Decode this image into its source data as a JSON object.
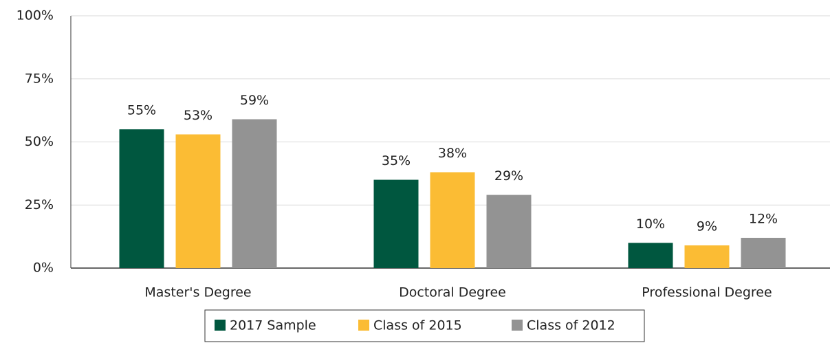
{
  "chart_data": {
    "type": "bar",
    "categories": [
      "Master's Degree",
      "Doctoral Degree",
      "Professional Degree"
    ],
    "series": [
      {
        "name": "2017 Sample",
        "color": "#00573f",
        "values": [
          55,
          35,
          10
        ],
        "value_labels": [
          "55%",
          "35%",
          "10%"
        ]
      },
      {
        "name": "Class of 2015",
        "color": "#fbbc34",
        "values": [
          53,
          38,
          9
        ],
        "value_labels": [
          "53%",
          "38%",
          "9%"
        ]
      },
      {
        "name": "Class of 2012",
        "color": "#939393",
        "values": [
          59,
          29,
          12
        ],
        "value_labels": [
          "59%",
          "29%",
          "12%"
        ]
      }
    ],
    "ylim": [
      0,
      100
    ],
    "yticks": [
      {
        "value": 0,
        "label": "0%"
      },
      {
        "value": 25,
        "label": "25%"
      },
      {
        "value": 50,
        "label": "50%"
      },
      {
        "value": 75,
        "label": "75%"
      },
      {
        "value": 100,
        "label": "100%"
      }
    ],
    "grid": true,
    "legend": "bottom"
  }
}
